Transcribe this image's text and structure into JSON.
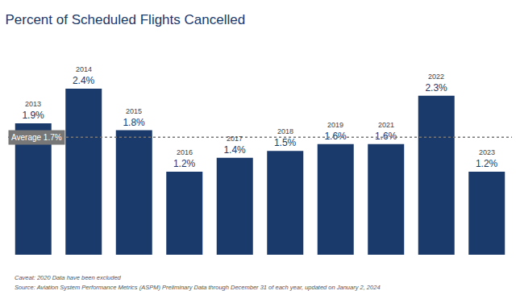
{
  "chart_data": {
    "type": "bar",
    "title": "Percent of Scheduled Flights Cancelled",
    "categories": [
      "2013",
      "2014",
      "2015",
      "2016",
      "2017",
      "2018",
      "2019",
      "2021",
      "2022",
      "2023"
    ],
    "values": [
      1.9,
      2.4,
      1.8,
      1.2,
      1.4,
      1.5,
      1.6,
      1.6,
      2.3,
      1.2
    ],
    "value_labels": [
      "1.9%",
      "2.4%",
      "1.8%",
      "1.2%",
      "1.4%",
      "1.5%",
      "1.6%",
      "1.6%",
      "2.3%",
      "1.2%"
    ],
    "data_labels": true,
    "color": "#1a3a6b",
    "ylim": [
      0,
      3.1
    ],
    "tick_labels": false,
    "grid": false,
    "annotations": [
      {
        "text": "Average 1.7%",
        "y": 1.7,
        "color": "#777777",
        "line_style": "dotted"
      },
      {
        "text": "Source: Aviation System Performance Metrics (ASPM) Preliminary Data through December 31 of each year, updated on January 2, 2024"
      },
      {
        "text": "Caveat: 2020 Data have been excluded"
      }
    ]
  }
}
